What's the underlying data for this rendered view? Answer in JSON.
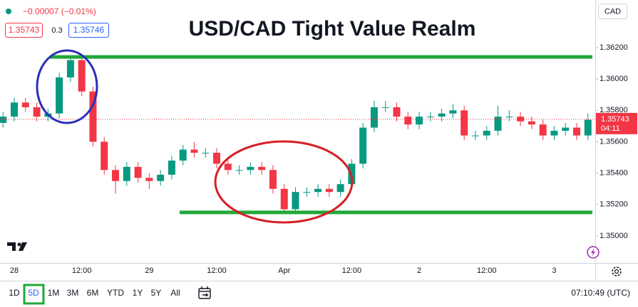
{
  "header": {
    "change": "−0.00007 (−0.01%)",
    "bid": "1.35743",
    "spread": "0.3",
    "ask": "1.35746",
    "currency": "CAD"
  },
  "chart_data": {
    "type": "candlestick",
    "title": "USD/CAD Tight Value Realm",
    "categories": [
      null,
      "28",
      null,
      null,
      null,
      null,
      null,
      "12:00",
      null,
      null,
      null,
      null,
      null,
      "29",
      null,
      null,
      null,
      null,
      null,
      "12:00",
      null,
      null,
      null,
      null,
      null,
      "Apr",
      null,
      null,
      null,
      null,
      null,
      "12:00",
      null,
      null,
      null,
      null,
      null,
      "2",
      null,
      null,
      null,
      null,
      null,
      "12:00",
      null,
      null,
      null,
      null,
      null,
      "3",
      null,
      null,
      null
    ],
    "open": [
      1.3572,
      1.3576,
      1.3585,
      1.3582,
      1.3576,
      1.3578,
      1.3601,
      1.3612,
      1.3592,
      1.356,
      1.3542,
      1.3535,
      1.3544,
      1.3537,
      1.3535,
      1.3539,
      1.3548,
      1.3555,
      1.3553,
      1.3553,
      1.3546,
      1.3542,
      1.3542,
      1.3544,
      1.3542,
      1.353,
      1.3517,
      1.3528,
      1.3528,
      1.353,
      1.3528,
      1.3533,
      1.3546,
      1.3569,
      1.3582,
      1.3582,
      1.3576,
      1.3571,
      1.3576,
      1.3576,
      1.3578,
      1.358,
      1.3564,
      1.3564,
      1.3567,
      1.3576,
      1.3576,
      1.3573,
      1.3571,
      1.3564,
      1.3567,
      1.3569,
      1.3564
    ],
    "high": [
      1.3579,
      1.3588,
      1.3588,
      1.3585,
      1.3581,
      1.3604,
      1.3614,
      1.3613,
      1.3595,
      1.3563,
      1.3545,
      1.3547,
      1.3547,
      1.354,
      1.3542,
      1.3551,
      1.3558,
      1.356,
      1.3556,
      1.3556,
      1.3549,
      1.3545,
      1.3547,
      1.3547,
      1.3545,
      1.3533,
      1.3531,
      1.3531,
      1.3533,
      1.3533,
      1.3536,
      1.3549,
      1.3572,
      1.3586,
      1.3586,
      1.3585,
      1.3579,
      1.3579,
      1.3579,
      1.3581,
      1.3584,
      1.3583,
      1.3567,
      1.357,
      1.3583,
      1.358,
      1.3579,
      1.3576,
      1.3574,
      1.357,
      1.3572,
      1.3572,
      1.3578
    ],
    "low": [
      1.3569,
      1.3573,
      1.3579,
      1.3573,
      1.3573,
      1.3575,
      1.3598,
      1.3589,
      1.3557,
      1.3539,
      1.3527,
      1.3532,
      1.3534,
      1.353,
      1.3532,
      1.3536,
      1.3545,
      1.355,
      1.355,
      1.3543,
      1.3539,
      1.3539,
      1.3539,
      1.3539,
      1.3527,
      1.3515,
      1.3515,
      1.3525,
      1.3525,
      1.3525,
      1.3525,
      1.353,
      1.3543,
      1.3566,
      1.3579,
      1.3573,
      1.3568,
      1.3568,
      1.3573,
      1.3573,
      1.3575,
      1.3561,
      1.3561,
      1.3561,
      1.3564,
      1.3573,
      1.357,
      1.3568,
      1.3561,
      1.3561,
      1.3564,
      1.3561,
      1.3561
    ],
    "close": [
      1.3576,
      1.3585,
      1.3582,
      1.3576,
      1.3578,
      1.3601,
      1.3612,
      1.3592,
      1.356,
      1.3542,
      1.3535,
      1.3544,
      1.3537,
      1.3535,
      1.3539,
      1.3548,
      1.3555,
      1.3553,
      1.3553,
      1.3546,
      1.3542,
      1.3542,
      1.3544,
      1.3542,
      1.353,
      1.3517,
      1.3528,
      1.3528,
      1.353,
      1.3528,
      1.3533,
      1.3546,
      1.3569,
      1.3582,
      1.3582,
      1.3576,
      1.3571,
      1.3576,
      1.3576,
      1.3578,
      1.358,
      1.3564,
      1.3564,
      1.3567,
      1.3576,
      1.3576,
      1.3573,
      1.3571,
      1.3564,
      1.3567,
      1.3569,
      1.3564,
      1.3574
    ],
    "up_color": "#089981",
    "down_color": "#f23645",
    "levels": [
      1.3614,
      1.3515
    ],
    "level_color": "#22a838",
    "ylim": [
      1.34828,
      1.36503
    ],
    "yticks": [
      {
        "value": 1.362,
        "label": "1.36200"
      },
      {
        "value": 1.36,
        "label": "1.36000"
      },
      {
        "value": 1.358,
        "label": "1.35800"
      },
      {
        "value": 1.356,
        "label": "1.35600"
      },
      {
        "value": 1.354,
        "label": "1.35400"
      },
      {
        "value": 1.352,
        "label": "1.35200"
      },
      {
        "value": 1.35,
        "label": "1.35000"
      }
    ],
    "last_price": 1.35743,
    "countdown": "04:11"
  },
  "toolbar": {
    "ranges": [
      "1D",
      "5D",
      "1M",
      "3M",
      "6M",
      "YTD",
      "1Y",
      "5Y",
      "All"
    ],
    "selected": "5D",
    "clock": "07:10:49 (UTC)"
  }
}
